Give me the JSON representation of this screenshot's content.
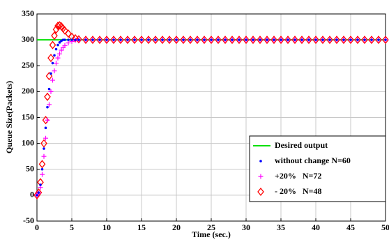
{
  "chart_data": {
    "type": "line",
    "xlabel": "Time (sec.)",
    "ylabel": "Queue Size(Packets)",
    "xlim": [
      0,
      50
    ],
    "xticks": [
      0,
      5,
      10,
      15,
      20,
      25,
      30,
      35,
      40,
      45,
      50
    ],
    "ylim": [
      -50,
      350
    ],
    "yticks": [
      -50,
      0,
      50,
      100,
      150,
      200,
      250,
      300,
      350
    ],
    "grid": true,
    "legend": "lower right",
    "x": [
      0,
      0.25,
      0.5,
      0.75,
      1,
      1.25,
      1.5,
      1.75,
      2,
      2.25,
      2.5,
      2.75,
      3,
      3.25,
      3.5,
      3.75,
      4,
      4.5,
      5,
      5.5,
      6,
      7,
      8,
      9,
      10,
      11,
      12,
      13,
      14,
      15,
      16,
      17,
      18,
      19,
      20,
      21,
      22,
      23,
      24,
      25,
      26,
      27,
      28,
      29,
      30,
      31,
      32,
      33,
      34,
      35,
      36,
      37,
      38,
      39,
      40,
      41,
      42,
      43,
      44,
      45,
      46,
      47,
      48,
      49,
      50
    ],
    "series": [
      {
        "name": "Desired output",
        "color": "#00e000",
        "marker": "line",
        "x": [
          0,
          50
        ],
        "values": [
          300,
          300
        ]
      },
      {
        "name": "without change N=60",
        "color": "#0000ff",
        "marker": "dot",
        "values": [
          0,
          5,
          20,
          50,
          90,
          130,
          170,
          205,
          235,
          255,
          270,
          282,
          290,
          295,
          298,
          300,
          300,
          300,
          300,
          300,
          300,
          300,
          300,
          300,
          300,
          300,
          300,
          300,
          300,
          300,
          300,
          300,
          300,
          300,
          300,
          300,
          300,
          300,
          300,
          300,
          300,
          300,
          300,
          300,
          300,
          300,
          300,
          300,
          300,
          300,
          300,
          300,
          300,
          300,
          300,
          300,
          300,
          300,
          300,
          300,
          300,
          300,
          300,
          300,
          300
        ]
      },
      {
        "name": "+20%   N=72",
        "color": "#ff00ff",
        "marker": "plus",
        "values": [
          0,
          4,
          15,
          40,
          75,
          110,
          145,
          175,
          200,
          222,
          240,
          255,
          265,
          273,
          280,
          285,
          289,
          294,
          297,
          299,
          300,
          300,
          300,
          300,
          300,
          300,
          300,
          300,
          300,
          300,
          300,
          300,
          300,
          300,
          300,
          300,
          300,
          300,
          300,
          300,
          300,
          300,
          300,
          300,
          300,
          300,
          300,
          300,
          300,
          300,
          300,
          300,
          300,
          300,
          300,
          300,
          300,
          300,
          300,
          300,
          300,
          300,
          300,
          300,
          300
        ]
      },
      {
        "name": "- 20%   N=48",
        "color": "#ff0000",
        "marker": "diamond",
        "values": [
          0,
          5,
          25,
          60,
          100,
          145,
          190,
          230,
          265,
          290,
          308,
          320,
          327,
          328,
          326,
          322,
          318,
          312,
          306,
          303,
          301,
          300,
          300,
          300,
          300,
          300,
          300,
          300,
          300,
          300,
          300,
          300,
          300,
          300,
          300,
          300,
          300,
          300,
          300,
          300,
          300,
          300,
          300,
          300,
          300,
          300,
          300,
          300,
          300,
          300,
          300,
          300,
          300,
          300,
          300,
          300,
          300,
          300,
          300,
          300,
          300,
          300,
          300,
          300,
          300
        ]
      }
    ]
  }
}
